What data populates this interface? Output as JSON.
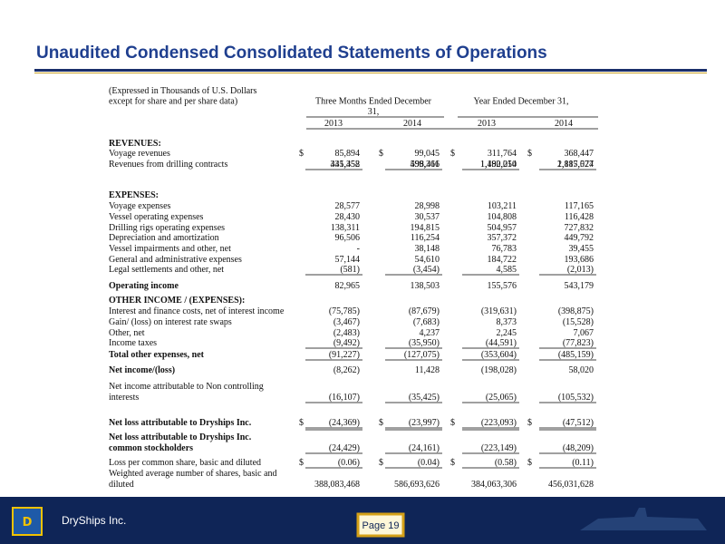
{
  "header": {
    "title": "Unaudited Condensed Consolidated Statements of Operations"
  },
  "table": {
    "caption": [
      "(Expressed in Thousands of U.S. Dollars",
      "except for share and per share data)"
    ],
    "groups": [
      [
        "Three Months Ended December",
        "31,"
      ],
      [
        "Year Ended December 31,"
      ]
    ],
    "years": [
      "2013",
      "2014",
      "2013",
      "2014"
    ],
    "currency": "$",
    "rows": [
      {
        "label": [
          "REVENUES:"
        ],
        "values": []
      },
      {
        "label": [
          "Voyage revenues"
        ],
        "values": [
          "85,894",
          "99,045",
          "311,764",
          "368,447"
        ]
      },
      {
        "label": [
          "Revenues from drilling contracts"
        ],
        "values": [
          "345,458",
          "499,366",
          "1,180,250",
          "1,817,077"
        ]
      },
      {
        "label": [],
        "values": [
          "431,352",
          "598,411",
          "1,492,014",
          "2,185,524"
        ]
      },
      {
        "label": [
          "EXPENSES:"
        ],
        "values": []
      },
      {
        "label": [
          "Voyage expenses"
        ],
        "values": [
          "28,577",
          "28,998",
          "103,211",
          "117,165"
        ]
      },
      {
        "label": [
          "Vessel operating expenses"
        ],
        "values": [
          "28,430",
          "30,537",
          "104,808",
          "116,428"
        ]
      },
      {
        "label": [
          "Drilling rigs operating expenses"
        ],
        "values": [
          "138,311",
          "194,815",
          "504,957",
          "727,832"
        ]
      },
      {
        "label": [
          "Depreciation and amortization"
        ],
        "values": [
          "96,506",
          "116,254",
          "357,372",
          "449,792"
        ]
      },
      {
        "label": [
          "Vessel impairments and other, net"
        ],
        "values": [
          "-",
          "38,148",
          "76,783",
          "39,455"
        ]
      },
      {
        "label": [
          "General and administrative expenses"
        ],
        "values": [
          "57,144",
          "54,610",
          "184,722",
          "193,686"
        ]
      },
      {
        "label": [
          "Legal settlements and other, net"
        ],
        "values": [
          "(581)",
          "(3,454)",
          "4,585",
          "(2,013)"
        ]
      },
      {
        "label": [
          "Operating income"
        ],
        "values": [
          "82,965",
          "138,503",
          "155,576",
          "543,179"
        ]
      },
      {
        "label": [
          "OTHER INCOME / (EXPENSES):"
        ],
        "values": []
      },
      {
        "label": [
          "Interest and finance costs, net of interest income"
        ],
        "values": [
          "(75,785)",
          "(87,679)",
          "(319,631)",
          "(398,875)"
        ]
      },
      {
        "label": [
          "Gain/ (loss) on interest rate swaps"
        ],
        "values": [
          "(3,467)",
          "(7,683)",
          "8,373",
          "(15,528)"
        ]
      },
      {
        "label": [
          "Other, net"
        ],
        "values": [
          "(2,483)",
          "4,237",
          "2,245",
          "7,067"
        ]
      },
      {
        "label": [
          "Income taxes"
        ],
        "values": [
          "(9,492)",
          "(35,950)",
          "(44,591)",
          "(77,823)"
        ]
      },
      {
        "label": [
          "Total other expenses, net"
        ],
        "values": [
          "(91,227)",
          "(127,075)",
          "(353,604)",
          "(485,159)"
        ]
      },
      {
        "label": [
          "Net income/(loss)"
        ],
        "values": [
          "(8,262)",
          "11,428",
          "(198,028)",
          "58,020"
        ]
      },
      {
        "label": [
          "Net income attributable to Non controlling",
          "interests"
        ],
        "values": [
          "(16,107)",
          "(35,425)",
          "(25,065)",
          "(105,532)"
        ]
      },
      {
        "label": [
          "Net loss attributable to Dryships Inc."
        ],
        "values": [
          "(24,369)",
          "(23,997)",
          "(223,093)",
          "(47,512)"
        ]
      },
      {
        "label": [
          "Net loss attributable to Dryships Inc.",
          "common stockholders"
        ],
        "values": [
          "(24,429)",
          "(24,161)",
          "(223,149)",
          "(48,209)"
        ]
      },
      {
        "label": [
          "Loss per common share, basic and diluted"
        ],
        "values": [
          "(0.06)",
          "(0.04)",
          "(0.58)",
          "(0.11)"
        ]
      },
      {
        "label": [
          "Weighted average number of shares, basic and",
          "diluted"
        ],
        "values": [
          "388,083,468",
          "586,693,626",
          "384,063,306",
          "456,031,628"
        ]
      }
    ]
  },
  "footer": {
    "company": "DryShips Inc.",
    "logo": "D",
    "page": "Page 19"
  }
}
